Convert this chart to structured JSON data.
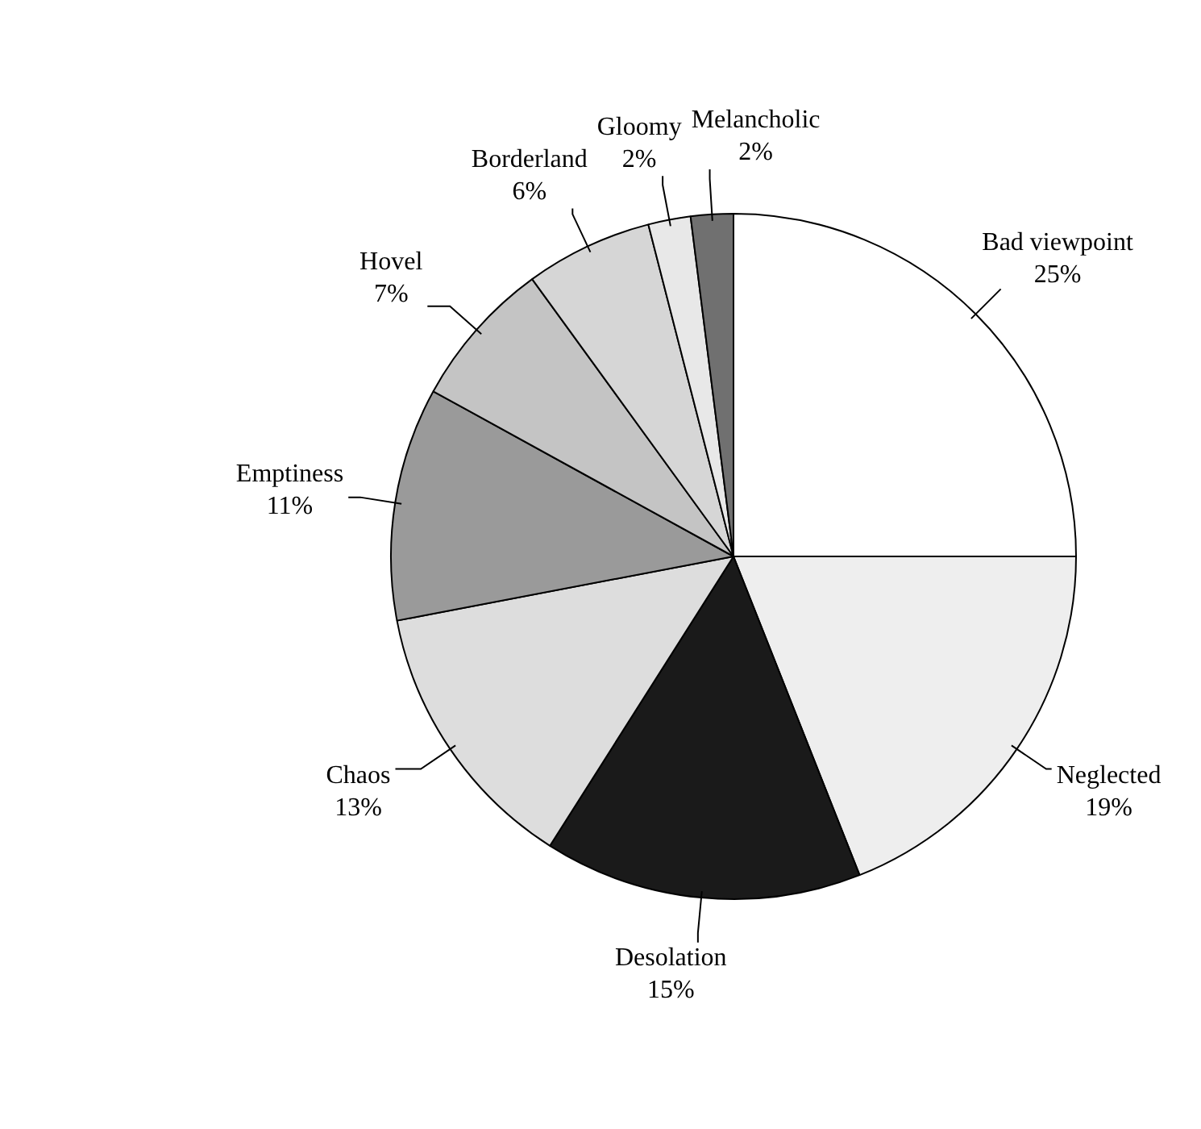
{
  "chart_data": {
    "type": "pie",
    "categories": [
      "Bad viewpoint",
      "Neglected",
      "Desolation",
      "Chaos",
      "Emptiness",
      "Hovel",
      "Borderland",
      "Gloomy",
      "Melancholic"
    ],
    "values": [
      25,
      19,
      15,
      13,
      11,
      7,
      6,
      2,
      2
    ],
    "value_labels": [
      "25%",
      "19%",
      "15%",
      "13%",
      "11%",
      "7%",
      "6%",
      "2%",
      "2%"
    ],
    "colors": [
      "#ffffff",
      "#eeeeee",
      "#1a1a1a",
      "#dddddd",
      "#9a9a9a",
      "#c4c4c4",
      "#d6d6d6",
      "#e8e8e8",
      "#707070"
    ],
    "legend": false
  }
}
